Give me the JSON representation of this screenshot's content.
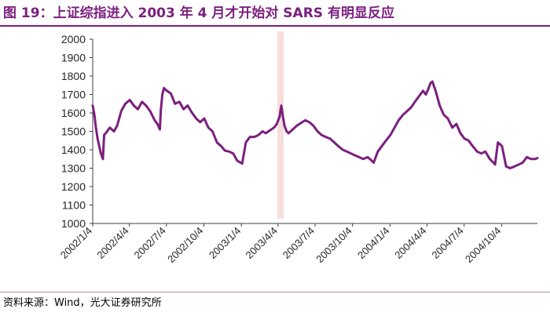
{
  "title": "图 19：上证综指进入 2003 年 4 月才开始对 SARS 有明显反应",
  "source": "资料来源：Wind，光大证券研究所",
  "colors": {
    "accent": "#7b1f7f",
    "line": "#7b1f7f",
    "highlight": "#f6dede",
    "axis": "#404040"
  },
  "chart_data": {
    "type": "line",
    "title": "",
    "xlabel": "",
    "ylabel": "",
    "ylim": [
      1000,
      2000
    ],
    "yticks": [
      1000,
      1100,
      1200,
      1300,
      1400,
      1500,
      1600,
      1700,
      1800,
      1900,
      2000
    ],
    "xlim": [
      "2002-01-04",
      "2004-12-31"
    ],
    "xticks": [
      "2002/1/4",
      "2002/4/4",
      "2002/7/4",
      "2002/10/4",
      "2003/1/4",
      "2003/4/4",
      "2003/7/4",
      "2003/10/4",
      "2004/1/4",
      "2004/4/4",
      "2004/7/4",
      "2004/10/4"
    ],
    "highlight_date": "2003-04-10",
    "grid": false,
    "series": [
      {
        "name": "",
        "x": [
          "2002-01-04",
          "2002-01-08",
          "2002-01-12",
          "2002-01-16",
          "2002-01-20",
          "2002-01-24",
          "2002-01-29",
          "2002-02-01",
          "2002-02-05",
          "2002-02-15",
          "2002-02-25",
          "2002-03-05",
          "2002-03-15",
          "2002-03-25",
          "2002-04-05",
          "2002-04-15",
          "2002-04-25",
          "2002-05-05",
          "2002-05-15",
          "2002-05-25",
          "2002-06-05",
          "2002-06-12",
          "2002-06-18",
          "2002-06-20",
          "2002-06-24",
          "2002-06-28",
          "2002-07-05",
          "2002-07-15",
          "2002-07-25",
          "2002-08-05",
          "2002-08-15",
          "2002-08-25",
          "2002-09-05",
          "2002-09-15",
          "2002-09-25",
          "2002-10-05",
          "2002-10-15",
          "2002-10-25",
          "2002-11-05",
          "2002-11-15",
          "2002-11-25",
          "2002-12-05",
          "2002-12-15",
          "2002-12-25",
          "2003-01-06",
          "2003-01-15",
          "2003-01-25",
          "2003-02-05",
          "2003-02-15",
          "2003-02-25",
          "2003-03-05",
          "2003-03-15",
          "2003-03-25",
          "2003-04-01",
          "2003-04-08",
          "2003-04-12",
          "2003-04-16",
          "2003-04-20",
          "2003-04-25",
          "2003-04-30",
          "2003-05-10",
          "2003-05-20",
          "2003-05-30",
          "2003-06-10",
          "2003-06-20",
          "2003-06-30",
          "2003-07-10",
          "2003-07-20",
          "2003-07-30",
          "2003-08-10",
          "2003-08-20",
          "2003-08-30",
          "2003-09-10",
          "2003-09-20",
          "2003-09-30",
          "2003-10-10",
          "2003-10-20",
          "2003-10-30",
          "2003-11-10",
          "2003-11-18",
          "2003-11-25",
          "2003-12-05",
          "2003-12-15",
          "2003-12-25",
          "2004-01-05",
          "2004-01-15",
          "2004-01-25",
          "2004-02-05",
          "2004-02-15",
          "2004-02-25",
          "2004-03-05",
          "2004-03-15",
          "2004-03-25",
          "2004-04-01",
          "2004-04-07",
          "2004-04-12",
          "2004-04-17",
          "2004-04-25",
          "2004-05-05",
          "2004-05-15",
          "2004-05-25",
          "2004-06-05",
          "2004-06-15",
          "2004-06-25",
          "2004-07-05",
          "2004-07-15",
          "2004-07-25",
          "2004-08-05",
          "2004-08-15",
          "2004-08-25",
          "2004-09-05",
          "2004-09-14",
          "2004-09-18",
          "2004-09-25",
          "2004-10-05",
          "2004-10-15",
          "2004-10-25",
          "2004-11-05",
          "2004-11-15",
          "2004-11-25",
          "2004-12-05",
          "2004-12-15",
          "2004-12-25",
          "2004-12-31"
        ],
        "values": [
          1640,
          1590,
          1520,
          1460,
          1420,
          1380,
          1350,
          1480,
          1490,
          1520,
          1500,
          1530,
          1610,
          1650,
          1670,
          1640,
          1620,
          1660,
          1640,
          1610,
          1560,
          1540,
          1510,
          1610,
          1700,
          1735,
          1720,
          1705,
          1650,
          1660,
          1620,
          1640,
          1600,
          1570,
          1550,
          1570,
          1520,
          1500,
          1440,
          1420,
          1395,
          1390,
          1380,
          1340,
          1325,
          1440,
          1470,
          1470,
          1480,
          1500,
          1490,
          1505,
          1520,
          1540,
          1580,
          1640,
          1580,
          1530,
          1500,
          1490,
          1510,
          1530,
          1545,
          1560,
          1550,
          1530,
          1500,
          1480,
          1470,
          1460,
          1440,
          1420,
          1400,
          1390,
          1380,
          1370,
          1360,
          1350,
          1360,
          1345,
          1330,
          1390,
          1420,
          1450,
          1480,
          1520,
          1560,
          1590,
          1610,
          1630,
          1660,
          1690,
          1720,
          1700,
          1730,
          1760,
          1770,
          1720,
          1640,
          1590,
          1570,
          1520,
          1540,
          1490,
          1460,
          1450,
          1420,
          1390,
          1380,
          1390,
          1350,
          1330,
          1320,
          1440,
          1420,
          1310,
          1300,
          1310,
          1320,
          1330,
          1360,
          1350,
          1350,
          1355
        ]
      }
    ]
  }
}
